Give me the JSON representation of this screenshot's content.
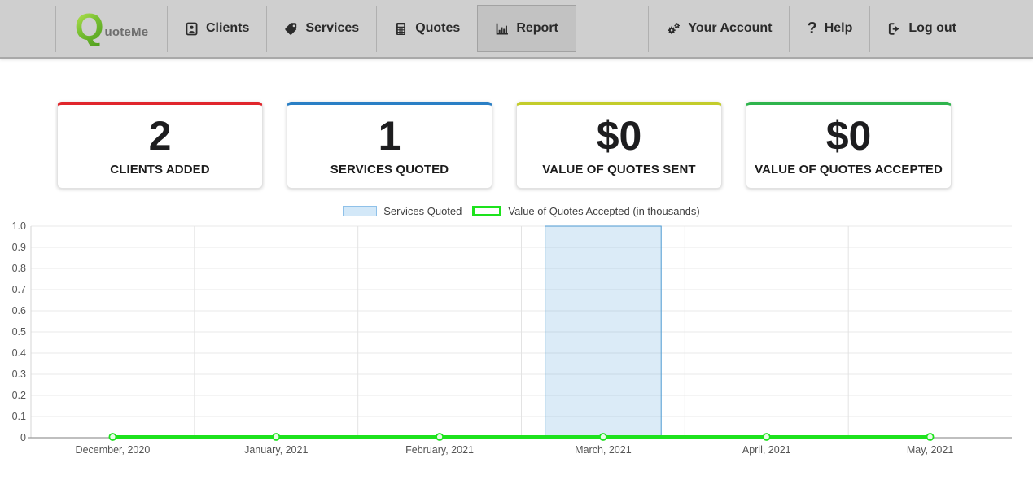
{
  "nav": {
    "brand": {
      "q": "Q",
      "rest": "uoteMe"
    },
    "items": [
      {
        "label": "Clients",
        "icon": "address-book-icon",
        "active": false
      },
      {
        "label": "Services",
        "icon": "tag-icon",
        "active": false
      },
      {
        "label": "Quotes",
        "icon": "calculator-icon",
        "active": false
      },
      {
        "label": "Report",
        "icon": "bar-chart-icon",
        "active": true
      }
    ],
    "right_items": [
      {
        "label": "Your Account",
        "icon": "gears-icon"
      },
      {
        "label": "Help",
        "icon": "question-icon",
        "glyph": "?"
      },
      {
        "label": "Log out",
        "icon": "logout-icon"
      }
    ]
  },
  "cards": [
    {
      "value": "2",
      "label": "CLIENTS ADDED",
      "accent_color": "#e0262c"
    },
    {
      "value": "1",
      "label": "SERVICES QUOTED",
      "accent_color": "#2a7fc5"
    },
    {
      "value": "$0",
      "label": "VALUE OF QUOTES SENT",
      "accent_color": "#c3cc2b"
    },
    {
      "value": "$0",
      "label": "VALUE OF QUOTES ACCEPTED",
      "accent_color": "#2fb44d"
    }
  ],
  "chart_data": {
    "type": "bar",
    "categories": [
      "December, 2020",
      "January, 2021",
      "February, 2021",
      "March, 2021",
      "April, 2021",
      "May, 2021"
    ],
    "series": [
      {
        "name": "Services Quoted",
        "type": "bar",
        "values": [
          0,
          0,
          0,
          1,
          0,
          0
        ],
        "fill": "#5ba3dc",
        "fill_opacity": 0.22,
        "stroke": "#4d9ad2",
        "legend_fill": "#d3e8f8",
        "legend_border": "#8fc1e9"
      },
      {
        "name": "Value of Quotes Accepted (in thousands)",
        "type": "line",
        "values": [
          0,
          0,
          0,
          0,
          0,
          0
        ],
        "color": "#1de21d",
        "marker_fill": "#e8fce8"
      }
    ],
    "ylim": [
      0,
      1
    ],
    "yticks": [
      "0",
      "0.1",
      "0.2",
      "0.3",
      "0.4",
      "0.5",
      "0.6",
      "0.7",
      "0.8",
      "0.9",
      "1.0"
    ],
    "grid": true,
    "legend_position": "top-center",
    "grid_color": "#e8e8e8",
    "axis_color": "#999999",
    "tick_label_color": "#555555"
  }
}
